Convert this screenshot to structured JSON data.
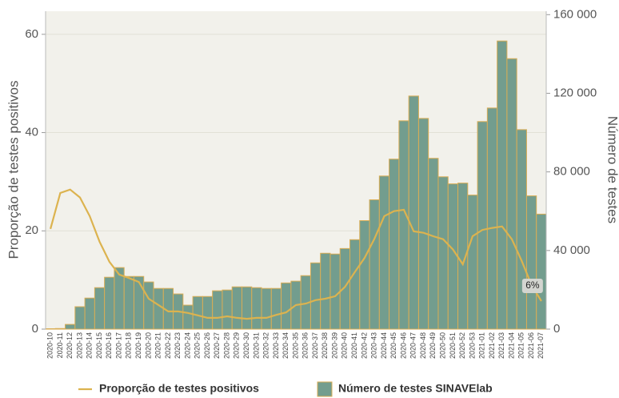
{
  "chart_data": {
    "type": "bar",
    "categories": [
      "2020-10",
      "2020-11",
      "2020-12",
      "2020-13",
      "2020-14",
      "2020-15",
      "2020-16",
      "2020-17",
      "2020-18",
      "2020-19",
      "2020-20",
      "2020-21",
      "2020-22",
      "2020-23",
      "2020-24",
      "2020-25",
      "2020-26",
      "2020-27",
      "2020-28",
      "2020-29",
      "2020-30",
      "2020-31",
      "2020-32",
      "2020-33",
      "2020-34",
      "2020-35",
      "2020-36",
      "2020-37",
      "2020-38",
      "2020-39",
      "2020-40",
      "2020-41",
      "2020-42",
      "2020-43",
      "2020-44",
      "2020-45",
      "2020-46",
      "2020-47",
      "2020-48",
      "2020-49",
      "2020-50",
      "2020-51",
      "2020-52",
      "2020-53",
      "2021-01",
      "2021-02",
      "2021-03",
      "2021-04",
      "2021-05",
      "2021-06",
      "2021-07"
    ],
    "series": [
      {
        "name": "Número de testes SINAVElab",
        "type": "bar",
        "axis": "y2",
        "color": "#739d8e",
        "edge_color": "#d9ad55",
        "values": [
          200,
          300,
          2400,
          11400,
          15800,
          21100,
          26400,
          31300,
          26800,
          26800,
          24000,
          20700,
          20700,
          17900,
          12200,
          16600,
          16600,
          19500,
          19900,
          21500,
          21500,
          21100,
          20700,
          20700,
          23500,
          24400,
          27200,
          33700,
          38600,
          38200,
          41000,
          45500,
          55200,
          65800,
          77900,
          86500,
          106000,
          118600,
          107200,
          86900,
          77500,
          73900,
          74300,
          68200,
          105600,
          112500,
          146600,
          137600,
          101500,
          67800,
          58500
        ]
      },
      {
        "name": "Proporção de testes positivos",
        "type": "line",
        "axis": "y",
        "color": "#dcb34f",
        "values": [
          20.4,
          27.7,
          28.4,
          26.8,
          23.0,
          17.8,
          13.7,
          11.1,
          10.4,
          9.6,
          6.2,
          4.9,
          3.6,
          3.6,
          3.3,
          2.8,
          2.3,
          2.3,
          2.6,
          2.3,
          2.1,
          2.3,
          2.3,
          2.9,
          3.4,
          4.9,
          5.2,
          5.9,
          6.2,
          6.7,
          8.6,
          11.6,
          14.5,
          18.4,
          23.0,
          24.0,
          24.3,
          19.9,
          19.6,
          18.9,
          18.3,
          16.2,
          13.2,
          18.9,
          20.2,
          20.6,
          20.9,
          18.3,
          13.9,
          9.0,
          5.7
        ],
        "value_labels": [
          null,
          null,
          null,
          null,
          null,
          null,
          null,
          null,
          null,
          null,
          null,
          null,
          null,
          null,
          null,
          null,
          null,
          null,
          null,
          null,
          null,
          null,
          null,
          null,
          null,
          null,
          null,
          null,
          null,
          null,
          null,
          null,
          null,
          null,
          null,
          null,
          null,
          null,
          null,
          null,
          null,
          null,
          null,
          null,
          null,
          null,
          null,
          null,
          null,
          null,
          "6%"
        ]
      }
    ],
    "ylabel": "Proporção de testes positivos",
    "y2label": "Número de testes",
    "ylim": [
      0,
      64.7
    ],
    "yticks": [
      0,
      20,
      40,
      60
    ],
    "y2lim": [
      0,
      161750
    ],
    "y2ticks": [
      0,
      {
        "value": 40000,
        "label": "40 000"
      },
      {
        "value": 80000,
        "label": "80 000"
      },
      {
        "value": 120000,
        "label": "120 000"
      },
      {
        "value": 160000,
        "label": "160 000"
      }
    ],
    "grid": true
  }
}
